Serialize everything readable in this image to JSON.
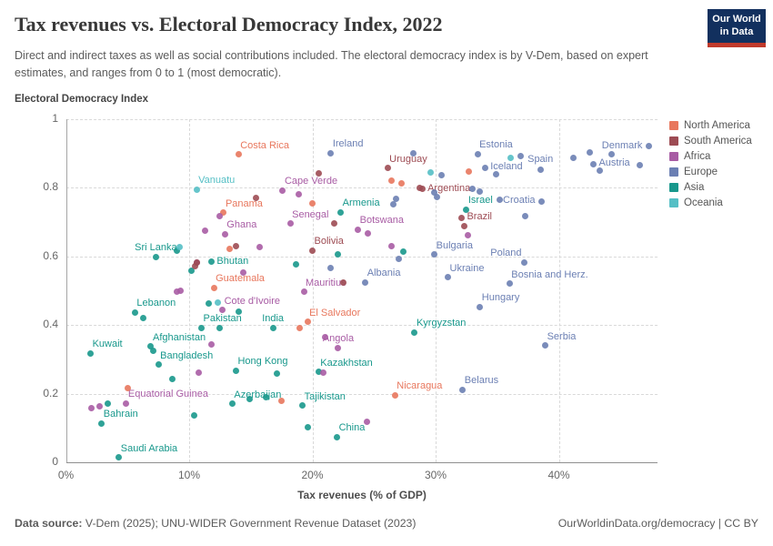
{
  "header": {
    "title": "Tax revenues vs. Electoral Democracy Index, 2022",
    "subtitle": "Direct and indirect taxes as well as social contributions included. The electoral democracy index is by V-Dem, based on expert estimates, and ranges from 0 to 1 (most democratic).",
    "logo_line1": "Our World",
    "logo_line2": "in Data"
  },
  "footer": {
    "datasource_label": "Data source:",
    "datasource": " V-Dem (2025); UNU-WIDER Government Revenue Dataset (2023)",
    "rights": "OurWorldinData.org/democracy | CC BY"
  },
  "chart_data": {
    "type": "scatter",
    "title": "Tax revenues vs. Electoral Democracy Index, 2022",
    "xlabel": "Tax revenues (% of GDP)",
    "ylabel": "Electoral Democracy Index",
    "xlim": [
      0,
      48
    ],
    "ylim": [
      0,
      1
    ],
    "grid": true,
    "x_ticks": [
      {
        "v": 0,
        "label": "0%"
      },
      {
        "v": 10,
        "label": "10%"
      },
      {
        "v": 20,
        "label": "20%"
      },
      {
        "v": 30,
        "label": "30%"
      },
      {
        "v": 40,
        "label": "40%"
      }
    ],
    "y_ticks": [
      {
        "v": 0,
        "label": "0"
      },
      {
        "v": 0.2,
        "label": "0.2"
      },
      {
        "v": 0.4,
        "label": "0.4"
      },
      {
        "v": 0.6,
        "label": "0.6"
      },
      {
        "v": 0.8,
        "label": "0.8"
      },
      {
        "v": 1,
        "label": "1"
      }
    ],
    "colors": {
      "NA": "#E8775D",
      "SA": "#9D4B53",
      "AF": "#A85CA4",
      "EU": "#6B7FB3",
      "AS": "#18988C",
      "OC": "#55BFC5"
    },
    "legend": [
      {
        "key": "NA",
        "label": "North America"
      },
      {
        "key": "SA",
        "label": "South America"
      },
      {
        "key": "AF",
        "label": "Africa"
      },
      {
        "key": "EU",
        "label": "Europe"
      },
      {
        "key": "AS",
        "label": "Asia"
      },
      {
        "key": "OC",
        "label": "Oceania"
      }
    ],
    "points": [
      {
        "x": 14.0,
        "y": 0.897,
        "c": "NA",
        "label": "Costa Rica",
        "a": "tr"
      },
      {
        "x": 21.5,
        "y": 0.901,
        "c": "EU",
        "label": "Ireland",
        "a": "tr"
      },
      {
        "x": 10.6,
        "y": 0.795,
        "c": "OC",
        "label": "Vanuatu",
        "a": "tr"
      },
      {
        "x": 17.6,
        "y": 0.793,
        "c": "AF",
        "label": "Cape Verde",
        "a": "tr"
      },
      {
        "x": 12.8,
        "y": 0.727,
        "c": "NA",
        "label": "Panama",
        "a": "tr"
      },
      {
        "x": 18.2,
        "y": 0.696,
        "c": "AF",
        "label": "Senegal",
        "a": "tr"
      },
      {
        "x": 22.3,
        "y": 0.729,
        "c": "AS",
        "label": "Armenia",
        "a": "tr"
      },
      {
        "x": 23.7,
        "y": 0.679,
        "c": "AF",
        "label": "Botswana",
        "a": "tr"
      },
      {
        "x": 12.9,
        "y": 0.665,
        "c": "AF",
        "label": "Ghana",
        "a": "tr"
      },
      {
        "x": 20.0,
        "y": 0.618,
        "c": "SA",
        "label": "Bolivia",
        "a": "tr"
      },
      {
        "x": 7.3,
        "y": 0.598,
        "c": "AS",
        "label": "Sri Lanka",
        "a": "t"
      },
      {
        "x": 11.8,
        "y": 0.584,
        "c": "AS",
        "label": "Bhutan",
        "a": "r"
      },
      {
        "x": 12.0,
        "y": 0.509,
        "c": "NA",
        "label": "Guatemala",
        "a": "tr"
      },
      {
        "x": 19.3,
        "y": 0.497,
        "c": "AF",
        "label": "Mauritius",
        "a": "tr"
      },
      {
        "x": 12.7,
        "y": 0.443,
        "c": "AF",
        "label": "Cote d'Ivoire",
        "a": "tr"
      },
      {
        "x": 5.6,
        "y": 0.437,
        "c": "AS",
        "label": "Lebanon",
        "a": "tr"
      },
      {
        "x": 11.0,
        "y": 0.392,
        "c": "AS",
        "label": "Pakistan",
        "a": "tr"
      },
      {
        "x": 16.8,
        "y": 0.391,
        "c": "AS",
        "label": "India",
        "a": "t"
      },
      {
        "x": 19.6,
        "y": 0.409,
        "c": "NA",
        "label": "El Salvador",
        "a": "tr"
      },
      {
        "x": 2.0,
        "y": 0.317,
        "c": "AS",
        "label": "Kuwait",
        "a": "tr"
      },
      {
        "x": 6.9,
        "y": 0.338,
        "c": "AS",
        "label": "Afghanistan",
        "a": "tr"
      },
      {
        "x": 22.1,
        "y": 0.332,
        "c": "AF",
        "label": "Angola",
        "a": "t"
      },
      {
        "x": 7.5,
        "y": 0.285,
        "c": "AS",
        "label": "Bangladesh",
        "a": "tr"
      },
      {
        "x": 13.8,
        "y": 0.267,
        "c": "AS",
        "label": "Hong Kong",
        "a": "tr"
      },
      {
        "x": 20.5,
        "y": 0.263,
        "c": "AS",
        "label": "Kazakhstan",
        "a": "tr"
      },
      {
        "x": 4.9,
        "y": 0.172,
        "c": "AF",
        "label": "Equatorial Guinea",
        "a": "tr"
      },
      {
        "x": 13.5,
        "y": 0.17,
        "c": "AS",
        "label": "Azerbaijan",
        "a": "tr"
      },
      {
        "x": 19.2,
        "y": 0.165,
        "c": "AS",
        "label": "Tajikistan",
        "a": "tr"
      },
      {
        "x": 2.9,
        "y": 0.113,
        "c": "AS",
        "label": "Bahrain",
        "a": "tr"
      },
      {
        "x": 4.3,
        "y": 0.014,
        "c": "AS",
        "label": "Saudi Arabia",
        "a": "tr"
      },
      {
        "x": 22.0,
        "y": 0.074,
        "c": "AS",
        "label": "China",
        "a": "tr"
      },
      {
        "x": 26.7,
        "y": 0.196,
        "c": "NA",
        "label": "Nicaragua",
        "a": "tr"
      },
      {
        "x": 32.2,
        "y": 0.211,
        "c": "EU",
        "label": "Belarus",
        "a": "tr"
      },
      {
        "x": 28.3,
        "y": 0.379,
        "c": "AS",
        "label": "Kyrgyzstan",
        "a": "tr"
      },
      {
        "x": 38.9,
        "y": 0.34,
        "c": "EU",
        "label": "Serbia",
        "a": "tr"
      },
      {
        "x": 33.6,
        "y": 0.453,
        "c": "EU",
        "label": "Hungary",
        "a": "tr"
      },
      {
        "x": 36.0,
        "y": 0.52,
        "c": "EU",
        "label": "Bosnia and Herz.",
        "a": "tr"
      },
      {
        "x": 31.0,
        "y": 0.539,
        "c": "EU",
        "label": "Ukraine",
        "a": "tr"
      },
      {
        "x": 24.3,
        "y": 0.525,
        "c": "EU",
        "label": "Albania",
        "a": "tr"
      },
      {
        "x": 29.9,
        "y": 0.605,
        "c": "EU",
        "label": "Bulgaria",
        "a": "tr"
      },
      {
        "x": 37.2,
        "y": 0.583,
        "c": "EU",
        "label": "Poland",
        "a": "tl"
      },
      {
        "x": 32.1,
        "y": 0.713,
        "c": "SA",
        "label": "Brazil",
        "a": "r"
      },
      {
        "x": 32.5,
        "y": 0.737,
        "c": "AS",
        "label": "Israel",
        "a": "tr"
      },
      {
        "x": 38.6,
        "y": 0.761,
        "c": "EU",
        "label": "Croatia",
        "a": "l"
      },
      {
        "x": 28.9,
        "y": 0.796,
        "c": "SA",
        "label": "Argentina",
        "a": "r"
      },
      {
        "x": 26.1,
        "y": 0.857,
        "c": "SA",
        "label": "Uruguay",
        "a": "tr"
      },
      {
        "x": 33.4,
        "y": 0.899,
        "c": "EU",
        "label": "Estonia",
        "a": "tr"
      },
      {
        "x": 34.0,
        "y": 0.859,
        "c": "EU",
        "label": "Iceland",
        "a": "r"
      },
      {
        "x": 38.5,
        "y": 0.854,
        "c": "EU",
        "label": "Spain",
        "a": "t"
      },
      {
        "x": 47.3,
        "y": 0.921,
        "c": "EU",
        "label": "Denmark",
        "a": "l"
      },
      {
        "x": 42.8,
        "y": 0.87,
        "c": "EU",
        "label": "Austria",
        "a": "r"
      },
      {
        "x": 28.2,
        "y": 0.9,
        "c": "EU"
      },
      {
        "x": 36.9,
        "y": 0.892,
        "c": "EU"
      },
      {
        "x": 41.2,
        "y": 0.886,
        "c": "EU"
      },
      {
        "x": 42.5,
        "y": 0.904,
        "c": "EU"
      },
      {
        "x": 44.3,
        "y": 0.898,
        "c": "EU"
      },
      {
        "x": 46.6,
        "y": 0.867,
        "c": "EU"
      },
      {
        "x": 43.3,
        "y": 0.851,
        "c": "EU"
      },
      {
        "x": 34.9,
        "y": 0.839,
        "c": "EU"
      },
      {
        "x": 30.5,
        "y": 0.837,
        "c": "EU"
      },
      {
        "x": 33.0,
        "y": 0.797,
        "c": "EU"
      },
      {
        "x": 33.6,
        "y": 0.79,
        "c": "EU"
      },
      {
        "x": 29.9,
        "y": 0.786,
        "c": "EU"
      },
      {
        "x": 30.1,
        "y": 0.773,
        "c": "EU"
      },
      {
        "x": 26.8,
        "y": 0.768,
        "c": "EU"
      },
      {
        "x": 26.6,
        "y": 0.751,
        "c": "EU"
      },
      {
        "x": 35.2,
        "y": 0.764,
        "c": "EU"
      },
      {
        "x": 37.3,
        "y": 0.717,
        "c": "EU"
      },
      {
        "x": 27.0,
        "y": 0.593,
        "c": "EU"
      },
      {
        "x": 21.5,
        "y": 0.567,
        "c": "EU"
      },
      {
        "x": 10.2,
        "y": 0.558,
        "c": "AS"
      },
      {
        "x": 14.0,
        "y": 0.438,
        "c": "AS"
      },
      {
        "x": 12.5,
        "y": 0.391,
        "c": "AS"
      },
      {
        "x": 6.3,
        "y": 0.421,
        "c": "AS"
      },
      {
        "x": 11.6,
        "y": 0.463,
        "c": "AS"
      },
      {
        "x": 18.7,
        "y": 0.576,
        "c": "AS"
      },
      {
        "x": 22.1,
        "y": 0.605,
        "c": "AS"
      },
      {
        "x": 27.4,
        "y": 0.614,
        "c": "AS"
      },
      {
        "x": 17.1,
        "y": 0.258,
        "c": "AS"
      },
      {
        "x": 14.9,
        "y": 0.185,
        "c": "AS"
      },
      {
        "x": 16.2,
        "y": 0.189,
        "c": "AS"
      },
      {
        "x": 10.4,
        "y": 0.136,
        "c": "AS"
      },
      {
        "x": 3.4,
        "y": 0.172,
        "c": "AS"
      },
      {
        "x": 19.6,
        "y": 0.101,
        "c": "AS"
      },
      {
        "x": 8.6,
        "y": 0.244,
        "c": "AS"
      },
      {
        "x": 7.1,
        "y": 0.326,
        "c": "AS"
      },
      {
        "x": 9.0,
        "y": 0.618,
        "c": "AS"
      },
      {
        "x": 29.6,
        "y": 0.845,
        "c": "OC"
      },
      {
        "x": 36.1,
        "y": 0.886,
        "c": "OC"
      },
      {
        "x": 9.2,
        "y": 0.627,
        "c": "OC"
      },
      {
        "x": 12.3,
        "y": 0.465,
        "c": "OC"
      },
      {
        "x": 10.6,
        "y": 0.582,
        "c": "AF"
      },
      {
        "x": 15.7,
        "y": 0.627,
        "c": "AF"
      },
      {
        "x": 11.3,
        "y": 0.676,
        "c": "AF"
      },
      {
        "x": 12.5,
        "y": 0.717,
        "c": "AF"
      },
      {
        "x": 14.4,
        "y": 0.552,
        "c": "AF"
      },
      {
        "x": 9.3,
        "y": 0.5,
        "c": "AF"
      },
      {
        "x": 9.0,
        "y": 0.497,
        "c": "AF"
      },
      {
        "x": 11.8,
        "y": 0.344,
        "c": "AF"
      },
      {
        "x": 21.0,
        "y": 0.366,
        "c": "AF"
      },
      {
        "x": 20.9,
        "y": 0.26,
        "c": "AF"
      },
      {
        "x": 10.8,
        "y": 0.262,
        "c": "AF"
      },
      {
        "x": 2.1,
        "y": 0.158,
        "c": "AF"
      },
      {
        "x": 2.7,
        "y": 0.163,
        "c": "AF"
      },
      {
        "x": 24.4,
        "y": 0.119,
        "c": "AF"
      },
      {
        "x": 32.6,
        "y": 0.662,
        "c": "AF"
      },
      {
        "x": 26.4,
        "y": 0.63,
        "c": "AF"
      },
      {
        "x": 18.9,
        "y": 0.78,
        "c": "AF"
      },
      {
        "x": 24.5,
        "y": 0.668,
        "c": "AF"
      },
      {
        "x": 5.0,
        "y": 0.216,
        "c": "NA"
      },
      {
        "x": 17.5,
        "y": 0.179,
        "c": "NA"
      },
      {
        "x": 20.0,
        "y": 0.755,
        "c": "NA"
      },
      {
        "x": 26.4,
        "y": 0.821,
        "c": "NA"
      },
      {
        "x": 27.2,
        "y": 0.814,
        "c": "NA"
      },
      {
        "x": 32.7,
        "y": 0.848,
        "c": "NA"
      },
      {
        "x": 19.0,
        "y": 0.39,
        "c": "NA"
      },
      {
        "x": 13.3,
        "y": 0.622,
        "c": "NA"
      },
      {
        "x": 20.5,
        "y": 0.843,
        "c": "SA"
      },
      {
        "x": 15.4,
        "y": 0.771,
        "c": "SA"
      },
      {
        "x": 21.8,
        "y": 0.695,
        "c": "SA"
      },
      {
        "x": 28.7,
        "y": 0.801,
        "c": "SA"
      },
      {
        "x": 32.3,
        "y": 0.689,
        "c": "SA"
      },
      {
        "x": 22.5,
        "y": 0.525,
        "c": "SA"
      },
      {
        "x": 10.6,
        "y": 0.583,
        "c": "SA"
      },
      {
        "x": 10.5,
        "y": 0.572,
        "c": "SA"
      },
      {
        "x": 13.8,
        "y": 0.631,
        "c": "SA"
      }
    ]
  }
}
